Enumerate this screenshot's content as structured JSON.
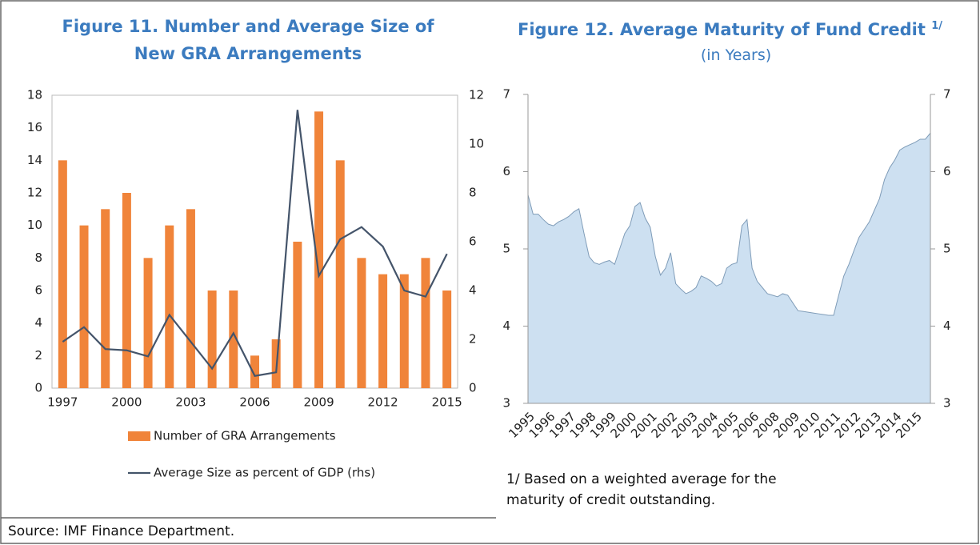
{
  "chart_data": [
    {
      "type": "bar-line",
      "title": "Figure 11. Number and Average Size of New GRA Arrangements",
      "categories": [
        "1997",
        null,
        null,
        "2000",
        null,
        null,
        "2003",
        null,
        null,
        "2006",
        null,
        null,
        "2009",
        null,
        null,
        "2012",
        null,
        null,
        "2015"
      ],
      "series": [
        {
          "name": "Number of GRA Arrangements",
          "type": "bar",
          "color": "#f0843a",
          "values": [
            14,
            10,
            11,
            12,
            8,
            10,
            11,
            6,
            6,
            2,
            3,
            9,
            17,
            14,
            8,
            7,
            7,
            8,
            6
          ]
        },
        {
          "name": "Average Size as percent of GDP (rhs)",
          "type": "line",
          "axis": "y2",
          "color": "#44546a",
          "values": [
            1.9,
            2.5,
            1.6,
            1.55,
            1.3,
            3.0,
            1.9,
            0.8,
            2.25,
            0.5,
            0.65,
            11.4,
            4.6,
            6.1,
            6.6,
            5.8,
            4.0,
            3.75,
            5.5
          ]
        }
      ],
      "ylim": [
        0,
        18
      ],
      "yticks": [
        0,
        2,
        4,
        6,
        8,
        10,
        12,
        14,
        16,
        18
      ],
      "y2lim": [
        0,
        12
      ],
      "y2ticks": [
        0,
        2,
        4,
        6,
        8,
        10,
        12
      ]
    },
    {
      "type": "area",
      "title": "Figure 12. Average Maturity of Fund Credit",
      "title_note": "1/",
      "subtitle": "(in Years)",
      "note": "1/ Based on a weighted average for the maturity of credit outstanding.",
      "categories": [
        "1995",
        null,
        null,
        null,
        "1996",
        null,
        null,
        null,
        "1997",
        null,
        null,
        null,
        "1998",
        null,
        null,
        null,
        "1999",
        null,
        null,
        null,
        "2000",
        null,
        null,
        null,
        "2001",
        null,
        null,
        null,
        "2002",
        null,
        null,
        null,
        "2003",
        null,
        null,
        null,
        "2004",
        null,
        null,
        null,
        "2005",
        null,
        null,
        null,
        "2006",
        null,
        null,
        null,
        "2008",
        null,
        null,
        null,
        "2009",
        null,
        null,
        null,
        "2010",
        null,
        null,
        null,
        "2011",
        null,
        null,
        null,
        "2012",
        null,
        null,
        null,
        "2013",
        null,
        null,
        null,
        "2014",
        null,
        null,
        null,
        "2015",
        null,
        null,
        null
      ],
      "series": [
        {
          "name": null,
          "color": "#cde0f1",
          "line_color": "#7f9cb8",
          "values": [
            5.7,
            5.45,
            5.45,
            5.38,
            5.32,
            5.3,
            5.35,
            5.38,
            5.42,
            5.48,
            5.52,
            5.2,
            4.9,
            4.82,
            4.8,
            4.83,
            4.85,
            4.8,
            5.0,
            5.2,
            5.3,
            5.55,
            5.6,
            5.4,
            5.28,
            4.9,
            4.66,
            4.75,
            4.95,
            4.55,
            4.48,
            4.42,
            4.45,
            4.5,
            4.65,
            4.62,
            4.58,
            4.52,
            4.55,
            4.75,
            4.8,
            4.82,
            5.3,
            5.38,
            4.75,
            4.58,
            4.5,
            4.42,
            4.4,
            4.38,
            4.42,
            4.4,
            4.3,
            4.2,
            4.19,
            4.18,
            4.17,
            4.16,
            4.15,
            4.14,
            4.14,
            4.4,
            4.65,
            4.8,
            4.98,
            5.15,
            5.25,
            5.35,
            5.5,
            5.65,
            5.9,
            6.05,
            6.15,
            6.28,
            6.32,
            6.35,
            6.38,
            6.42,
            6.42,
            6.5
          ]
        }
      ],
      "ylim": [
        3,
        7
      ],
      "yticks": [
        3,
        4,
        5,
        6,
        7
      ],
      "y2lim": [
        3,
        7
      ],
      "y2ticks": [
        3,
        4,
        5,
        6,
        7
      ]
    }
  ],
  "source": "Source: IMF Finance Department."
}
